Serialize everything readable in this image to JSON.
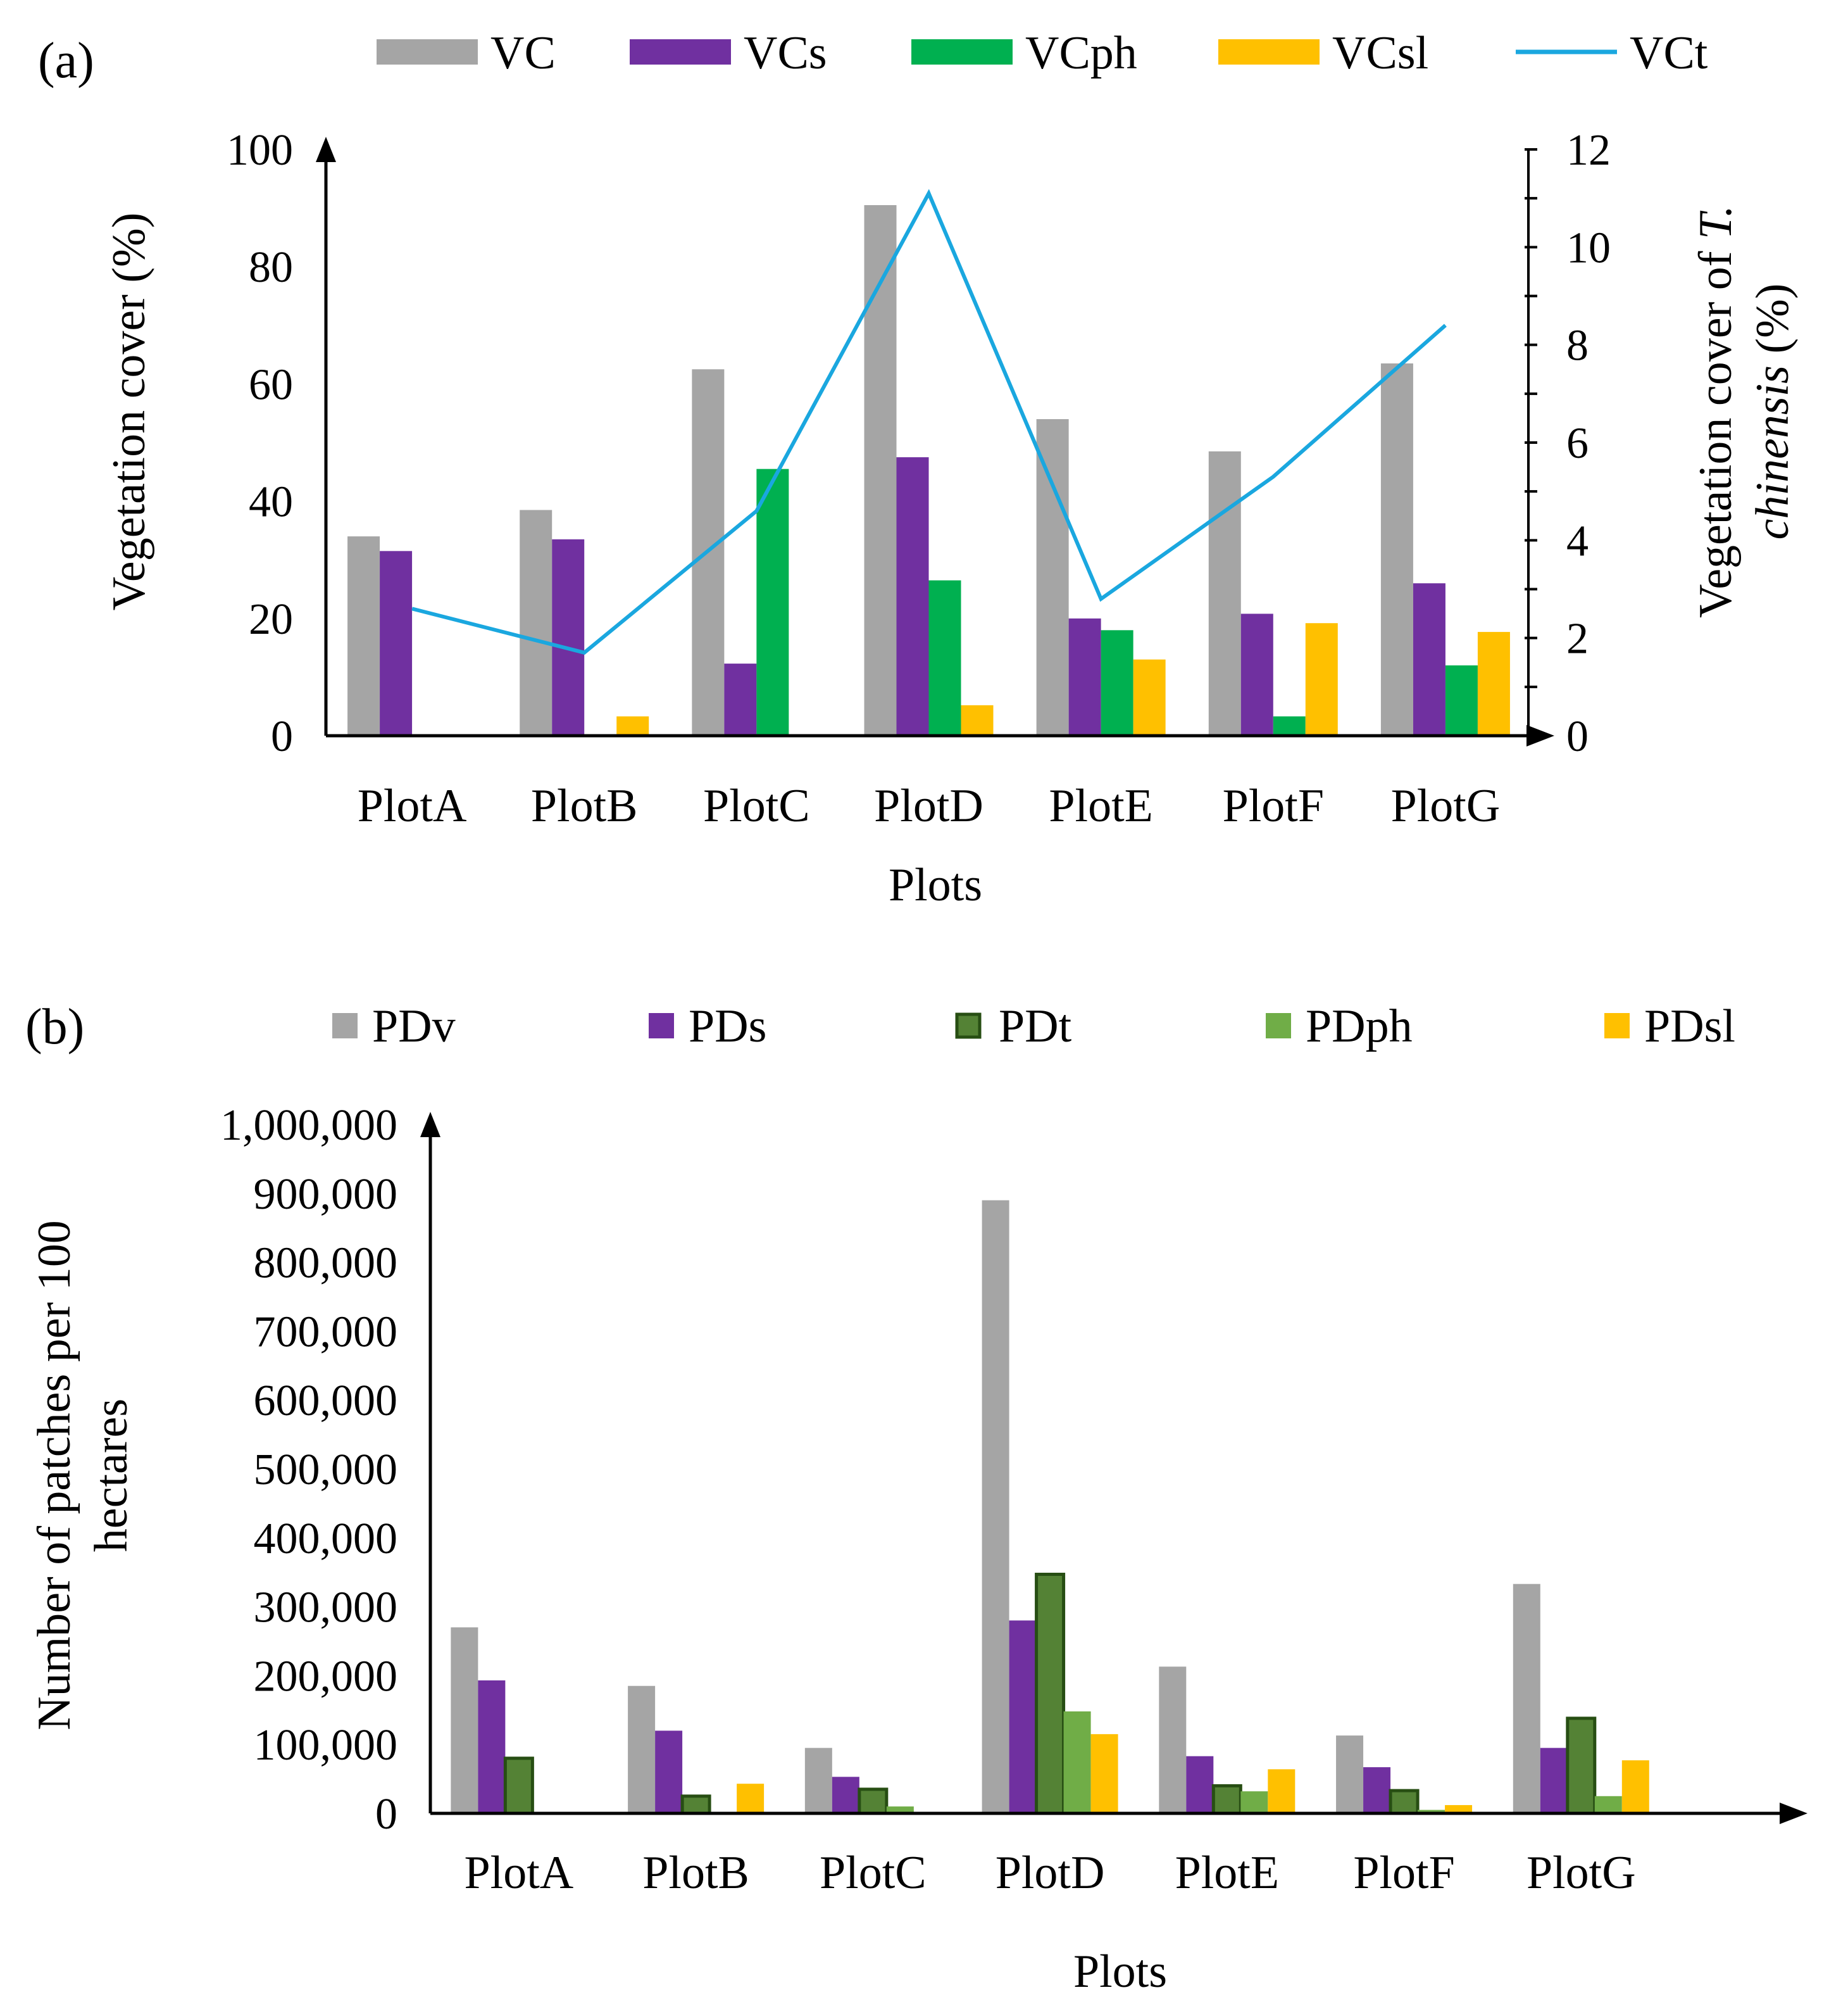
{
  "colors": {
    "VC": "#a5a5a5",
    "VCs": "#7030a0",
    "VCph": "#00b050",
    "VCsl": "#ffc000",
    "VCt": "#1aa7df",
    "PDv": "#a5a5a5",
    "PDs": "#7030a0",
    "PDt": "#548235",
    "PDt_outline": "#274e13",
    "PDph": "#70ad47",
    "PDsl": "#ffc000"
  },
  "chart_data": [
    {
      "panel_label": "(a)",
      "type": "bar",
      "categories": [
        "PlotA",
        "PlotB",
        "PlotC",
        "PlotD",
        "PlotE",
        "PlotF",
        "PlotG"
      ],
      "series": [
        {
          "key": "VC",
          "name": "VC",
          "values": [
            34,
            38.5,
            62.5,
            90.5,
            54,
            48.5,
            63.5
          ]
        },
        {
          "key": "VCs",
          "name": "VCs",
          "values": [
            31.5,
            33.5,
            12.3,
            47.5,
            20,
            20.8,
            26
          ]
        },
        {
          "key": "VCph",
          "name": "VCph",
          "values": [
            0,
            0,
            45.5,
            26.5,
            18,
            3.3,
            12
          ]
        },
        {
          "key": "VCsl",
          "name": "VCsl",
          "values": [
            0,
            3.3,
            0,
            5.2,
            13,
            19.2,
            17.7
          ]
        }
      ],
      "line_series": {
        "key": "VCt",
        "name": "VCt",
        "axis": "right",
        "values": [
          2.6,
          1.7,
          4.6,
          11.1,
          2.8,
          5.3,
          8.4
        ]
      },
      "legend": [
        "VC",
        "VCs",
        "VCph",
        "VCsl",
        "VCt"
      ],
      "xlabel": "Plots",
      "ylabel": "Vegetation cover (%)",
      "ylabel_right_line1": "Vegetation cover of ",
      "ylabel_right_italic1": "T.",
      "ylabel_right_italic2": "chinensis",
      "ylabel_right_line2": " (%)",
      "ylim": [
        0,
        100
      ],
      "yticks": [
        0,
        20,
        40,
        60,
        80,
        100
      ],
      "ytick_labels": [
        "0",
        "20",
        "40",
        "60",
        "80",
        "100"
      ],
      "ylim_right": [
        0,
        12
      ],
      "yticks_right": [
        0,
        2,
        4,
        6,
        8,
        10,
        12
      ],
      "ytick_labels_right": [
        "0",
        "2",
        "4",
        "6",
        "8",
        "10",
        "12"
      ],
      "grid": false,
      "legend_position": "top"
    },
    {
      "panel_label": "(b)",
      "type": "bar",
      "categories": [
        "PlotA",
        "PlotB",
        "PlotC",
        "PlotD",
        "PlotE",
        "PlotF",
        "PlotG"
      ],
      "series": [
        {
          "key": "PDv",
          "name": "PDv",
          "values": [
            270000,
            185000,
            95000,
            890000,
            213000,
            113000,
            333000
          ]
        },
        {
          "key": "PDs",
          "name": "PDs",
          "values": [
            193000,
            120000,
            53000,
            280000,
            83000,
            67000,
            95000
          ]
        },
        {
          "key": "PDt",
          "name": "PDt",
          "values": [
            80000,
            25000,
            35000,
            347000,
            40000,
            33000,
            138000
          ]
        },
        {
          "key": "PDph",
          "name": "PDph",
          "values": [
            0,
            0,
            10000,
            148000,
            32000,
            5000,
            25000
          ]
        },
        {
          "key": "PDsl",
          "name": "PDsl",
          "values": [
            0,
            43000,
            0,
            115000,
            64000,
            12000,
            77000
          ]
        }
      ],
      "legend": [
        "PDv",
        "PDs",
        "PDt",
        "PDph",
        "PDsl"
      ],
      "xlabel": "Plots",
      "ylabel_line1": "Number of patches per 100",
      "ylabel_line2": "hectares",
      "ylim": [
        0,
        1000000
      ],
      "yticks": [
        0,
        100000,
        200000,
        300000,
        400000,
        500000,
        600000,
        700000,
        800000,
        900000,
        1000000
      ],
      "ytick_labels": [
        "0",
        "100,000",
        "200,000",
        "300,000",
        "400,000",
        "500,000",
        "600,000",
        "700,000",
        "800,000",
        "900,000",
        "1,000,000"
      ],
      "grid": false,
      "legend_position": "top"
    }
  ]
}
